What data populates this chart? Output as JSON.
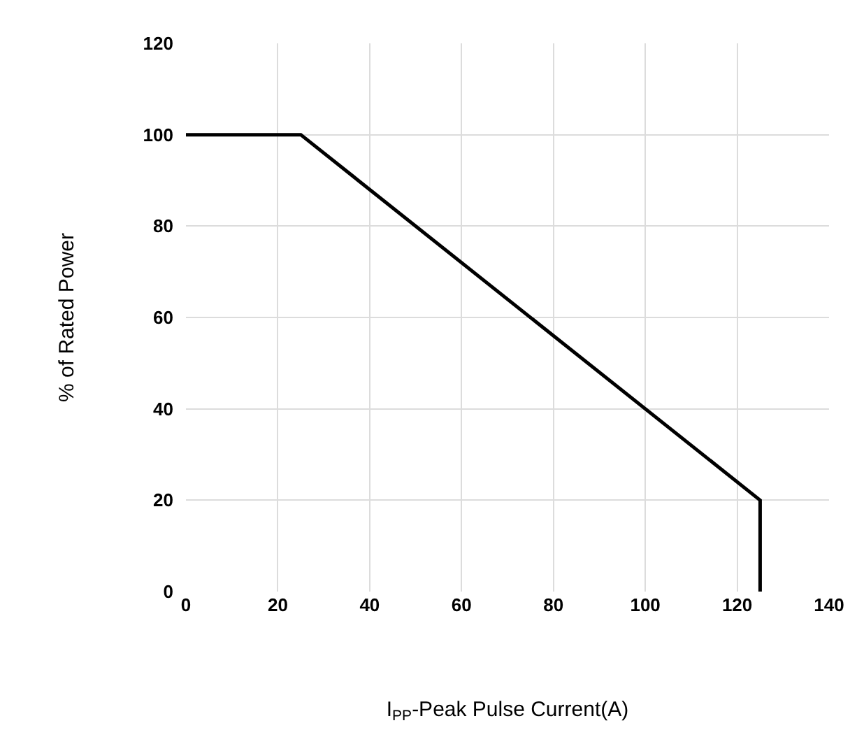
{
  "chart_data": {
    "type": "line",
    "xlabel": "I$_{PP}$-Peak Pulse Current(A)",
    "ylabel": "% of Rated Power",
    "series": [
      {
        "color": "#000000",
        "x": [
          0,
          25,
          125,
          125
        ],
        "values": [
          100,
          100,
          20,
          0
        ]
      }
    ],
    "xlim": [
      0,
      140
    ],
    "xticks": [
      0,
      20,
      40,
      60,
      80,
      100,
      120,
      140
    ],
    "ylim": [
      0,
      120
    ],
    "yticks": [
      0,
      20,
      40,
      60,
      80,
      100,
      120
    ],
    "grid": true,
    "marker": "none",
    "line_style": "solid"
  }
}
